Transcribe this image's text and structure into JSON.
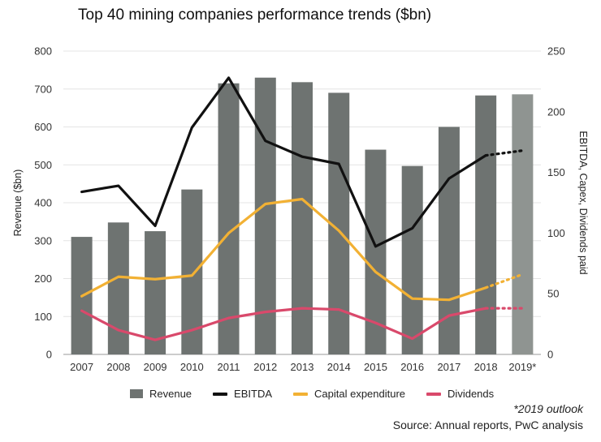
{
  "chart_data": {
    "type": "bar",
    "title": "Top 40 mining companies performance trends ($bn)",
    "categories": [
      "2007",
      "2008",
      "2009",
      "2010",
      "2011",
      "2012",
      "2013",
      "2014",
      "2015",
      "2016",
      "2017",
      "2018",
      "2019*"
    ],
    "ylabel": "Revenue ($bn)",
    "y2label": "EBITDA, Capex, Dividends paid",
    "ylim": [
      0,
      800
    ],
    "y2lim": [
      0,
      250
    ],
    "yticks": [
      0,
      100,
      200,
      300,
      400,
      500,
      600,
      700,
      800
    ],
    "y2ticks": [
      0,
      50,
      100,
      150,
      200,
      250
    ],
    "series": [
      {
        "name": "Revenue",
        "kind": "bar",
        "axis": "left",
        "values": [
          310,
          348,
          325,
          435,
          715,
          730,
          718,
          690,
          540,
          497,
          600,
          683,
          686
        ],
        "color": "#6e7371",
        "highlight_color": "#8f9491"
      },
      {
        "name": "EBITDA",
        "kind": "line",
        "axis": "right",
        "values": [
          134,
          139,
          106,
          187,
          228,
          176,
          163,
          157,
          89,
          104,
          145,
          164,
          168
        ],
        "color": "#111111"
      },
      {
        "name": "Capital expenditure",
        "kind": "line",
        "axis": "right",
        "values": [
          48,
          64,
          62,
          65,
          100,
          124,
          128,
          102,
          68,
          46,
          45,
          55,
          66
        ],
        "color": "#f2b134"
      },
      {
        "name": "Dividends",
        "kind": "line",
        "axis": "right",
        "values": [
          36,
          20,
          12,
          20,
          30,
          35,
          38,
          37,
          26,
          13,
          32,
          38,
          38
        ],
        "color": "#d9496b"
      }
    ],
    "forecast_from_index": 11,
    "legend_position": "bottom",
    "grid": true
  },
  "legend": [
    {
      "label": "Revenue",
      "kind": "bar",
      "color": "#6e7371"
    },
    {
      "label": "EBITDA",
      "kind": "line",
      "color": "#111111"
    },
    {
      "label": "Capital expenditure",
      "kind": "line",
      "color": "#f2b134"
    },
    {
      "label": "Dividends",
      "kind": "line",
      "color": "#d9496b"
    }
  ],
  "footnote": "*2019 outlook",
  "source": "Source: Annual reports, PwC analysis"
}
